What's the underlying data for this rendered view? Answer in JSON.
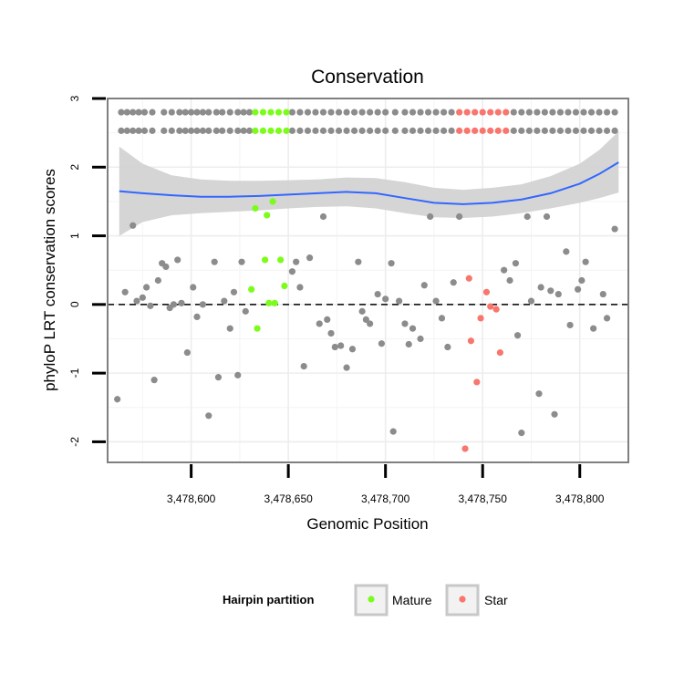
{
  "chart_data": {
    "type": "scatter",
    "title": "Conservation",
    "xlabel": "Genomic Position",
    "ylabel": "phyloP LRT conservation scores",
    "xlim": [
      3478557,
      3478825
    ],
    "ylim": [
      -2.3,
      3.0
    ],
    "x_ticks": [
      3478600,
      3478650,
      3478700,
      3478750,
      3478800
    ],
    "x_tick_labels": [
      "3,478,600",
      "3,478,650",
      "3,478,700",
      "3,478,750",
      "3,478,800"
    ],
    "y_ticks": [
      -2,
      -1,
      0,
      1,
      2,
      3
    ],
    "y_tick_labels": [
      "-2",
      "-1",
      "0",
      "1",
      "2",
      "3"
    ],
    "reference_line": {
      "y": 0,
      "style": "dashed"
    },
    "grid": true,
    "legend": {
      "title": "Hairpin partition",
      "position": "bottom",
      "entries": [
        {
          "label": "Mature",
          "color": "#7CFC1A"
        },
        {
          "label": "Star",
          "color": "#F8766D"
        }
      ]
    },
    "colors": {
      "other": "#8c8c8c",
      "Mature": "#7CFC1A",
      "Star": "#F8766D",
      "smooth": "#3366FF",
      "band": "#d3d3d3"
    },
    "rug_rows": [
      2.8,
      2.53
    ],
    "rug_other_x": [
      3478564,
      3478567,
      3478570,
      3478573,
      3478576,
      3478580,
      3478586,
      3478590,
      3478594,
      3478597,
      3478600,
      3478603,
      3478606,
      3478609,
      3478613,
      3478616,
      3478620,
      3478624,
      3478627,
      3478630,
      3478652,
      3478656,
      3478660,
      3478664,
      3478668,
      3478672,
      3478676,
      3478680,
      3478684,
      3478688,
      3478692,
      3478696,
      3478700,
      3478705,
      3478710,
      3478714,
      3478718,
      3478722,
      3478726,
      3478730,
      3478734,
      3478766,
      3478770,
      3478774,
      3478778,
      3478782,
      3478786,
      3478790,
      3478794,
      3478798,
      3478802,
      3478806,
      3478810,
      3478814,
      3478818
    ],
    "rug_mature_x": [
      3478633,
      3478637,
      3478641,
      3478645,
      3478649
    ],
    "rug_star_x": [
      3478738,
      3478742,
      3478746,
      3478750,
      3478754,
      3478758,
      3478762
    ],
    "series": [
      {
        "name": "other",
        "points": [
          [
            3478562,
            -1.38
          ],
          [
            3478566,
            0.18
          ],
          [
            3478570,
            1.15
          ],
          [
            3478572,
            0.05
          ],
          [
            3478575,
            0.1
          ],
          [
            3478577,
            0.25
          ],
          [
            3478579,
            -0.02
          ],
          [
            3478581,
            -1.1
          ],
          [
            3478583,
            0.35
          ],
          [
            3478585,
            0.6
          ],
          [
            3478587,
            0.55
          ],
          [
            3478589,
            -0.05
          ],
          [
            3478591,
            0.0
          ],
          [
            3478593,
            0.65
          ],
          [
            3478595,
            0.02
          ],
          [
            3478598,
            -0.7
          ],
          [
            3478601,
            0.25
          ],
          [
            3478603,
            -0.18
          ],
          [
            3478606,
            0.0
          ],
          [
            3478609,
            -1.62
          ],
          [
            3478612,
            0.62
          ],
          [
            3478614,
            -1.06
          ],
          [
            3478617,
            0.05
          ],
          [
            3478620,
            -0.35
          ],
          [
            3478622,
            0.18
          ],
          [
            3478624,
            -1.03
          ],
          [
            3478626,
            0.62
          ],
          [
            3478628,
            -0.1
          ],
          [
            3478652,
            0.48
          ],
          [
            3478654,
            0.62
          ],
          [
            3478656,
            0.25
          ],
          [
            3478658,
            -0.9
          ],
          [
            3478661,
            0.68
          ],
          [
            3478666,
            -0.28
          ],
          [
            3478668,
            1.28
          ],
          [
            3478670,
            -0.22
          ],
          [
            3478672,
            -0.42
          ],
          [
            3478674,
            -0.62
          ],
          [
            3478677,
            -0.6
          ],
          [
            3478680,
            -0.92
          ],
          [
            3478683,
            -0.65
          ],
          [
            3478686,
            0.62
          ],
          [
            3478688,
            -0.1
          ],
          [
            3478690,
            -0.22
          ],
          [
            3478692,
            -0.28
          ],
          [
            3478696,
            0.15
          ],
          [
            3478698,
            -0.57
          ],
          [
            3478700,
            0.08
          ],
          [
            3478703,
            0.6
          ],
          [
            3478704,
            -1.85
          ],
          [
            3478707,
            0.05
          ],
          [
            3478710,
            -0.28
          ],
          [
            3478712,
            -0.58
          ],
          [
            3478714,
            -0.35
          ],
          [
            3478718,
            -0.5
          ],
          [
            3478720,
            0.28
          ],
          [
            3478723,
            1.28
          ],
          [
            3478726,
            0.05
          ],
          [
            3478729,
            -0.2
          ],
          [
            3478732,
            -0.62
          ],
          [
            3478735,
            0.32
          ],
          [
            3478738,
            1.28
          ],
          [
            3478761,
            0.5
          ],
          [
            3478764,
            0.35
          ],
          [
            3478767,
            0.6
          ],
          [
            3478768,
            -0.45
          ],
          [
            3478770,
            -1.87
          ],
          [
            3478773,
            1.28
          ],
          [
            3478775,
            0.05
          ],
          [
            3478779,
            -1.3
          ],
          [
            3478780,
            0.25
          ],
          [
            3478783,
            1.28
          ],
          [
            3478785,
            0.2
          ],
          [
            3478787,
            -1.6
          ],
          [
            3478789,
            0.15
          ],
          [
            3478793,
            0.77
          ],
          [
            3478795,
            -0.3
          ],
          [
            3478799,
            0.22
          ],
          [
            3478801,
            0.35
          ],
          [
            3478803,
            0.62
          ],
          [
            3478807,
            -0.35
          ],
          [
            3478812,
            0.15
          ],
          [
            3478814,
            -0.2
          ],
          [
            3478818,
            1.1
          ]
        ]
      },
      {
        "name": "Mature",
        "points": [
          [
            3478631,
            0.22
          ],
          [
            3478633,
            1.4
          ],
          [
            3478634,
            -0.35
          ],
          [
            3478638,
            0.65
          ],
          [
            3478639,
            1.3
          ],
          [
            3478640,
            0.02
          ],
          [
            3478642,
            1.5
          ],
          [
            3478643,
            0.02
          ],
          [
            3478646,
            0.65
          ],
          [
            3478648,
            0.27
          ]
        ]
      },
      {
        "name": "Star",
        "points": [
          [
            3478741,
            -2.1
          ],
          [
            3478743,
            0.38
          ],
          [
            3478744,
            -0.53
          ],
          [
            3478747,
            -1.13
          ],
          [
            3478749,
            -0.2
          ],
          [
            3478752,
            0.18
          ],
          [
            3478754,
            -0.03
          ],
          [
            3478757,
            -0.07
          ],
          [
            3478759,
            -0.7
          ]
        ]
      }
    ],
    "smooth": {
      "x": [
        3478563,
        3478575,
        3478590,
        3478605,
        3478620,
        3478635,
        3478650,
        3478665,
        3478680,
        3478695,
        3478710,
        3478725,
        3478740,
        3478755,
        3478770,
        3478785,
        3478800,
        3478810,
        3478820
      ],
      "y": [
        1.65,
        1.62,
        1.59,
        1.57,
        1.57,
        1.58,
        1.6,
        1.62,
        1.64,
        1.62,
        1.55,
        1.48,
        1.46,
        1.48,
        1.53,
        1.62,
        1.76,
        1.9,
        2.07
      ],
      "lower": [
        1.0,
        1.2,
        1.3,
        1.33,
        1.35,
        1.37,
        1.4,
        1.42,
        1.43,
        1.4,
        1.33,
        1.27,
        1.26,
        1.28,
        1.33,
        1.4,
        1.48,
        1.55,
        1.63
      ],
      "upper": [
        2.3,
        2.05,
        1.88,
        1.82,
        1.8,
        1.8,
        1.81,
        1.82,
        1.85,
        1.84,
        1.78,
        1.7,
        1.67,
        1.7,
        1.75,
        1.87,
        2.05,
        2.25,
        2.52
      ]
    }
  }
}
